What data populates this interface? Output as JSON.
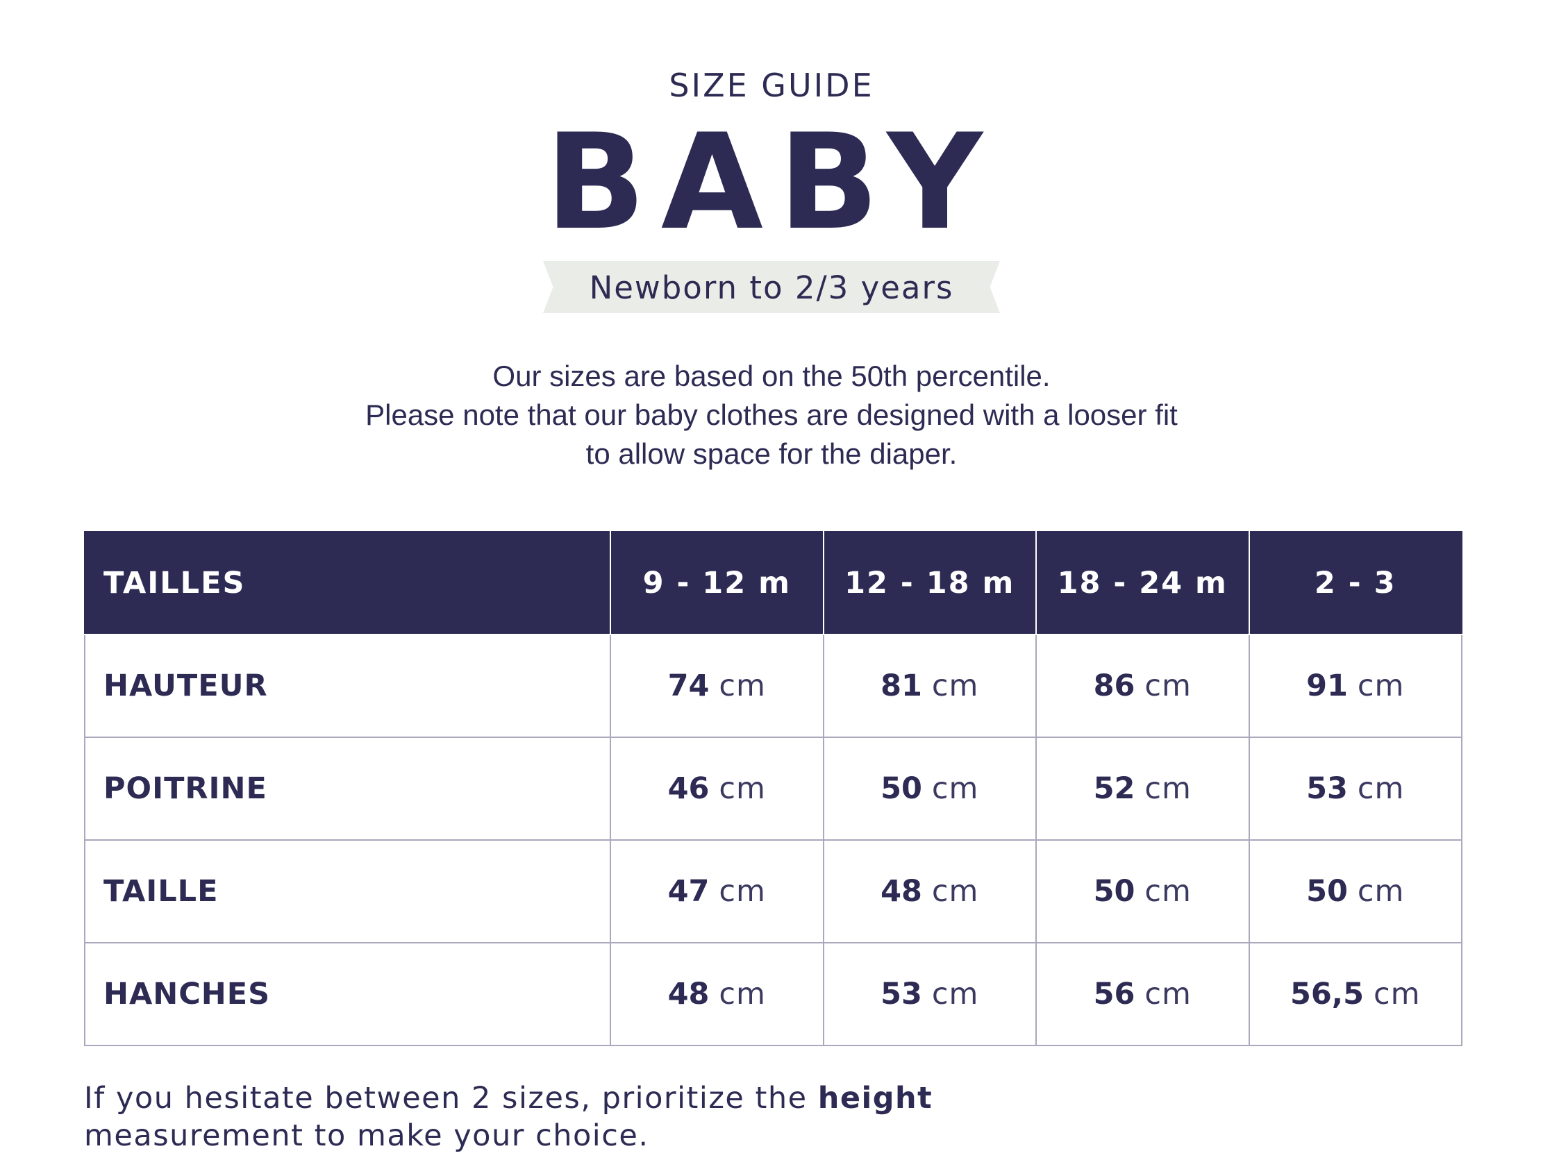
{
  "header": {
    "eyebrow": "SIZE GUIDE",
    "title": "BABY",
    "age_range": "Newborn to 2/3 years"
  },
  "intro": {
    "lines": [
      "Our sizes are based on the 50th percentile.",
      "Please note that our baby clothes are designed with a looser fit",
      "to allow space for the diaper."
    ]
  },
  "colors": {
    "navy": "#2d2b53",
    "ribbon": "#eaede7",
    "grid": "#a9a8bd"
  },
  "table": {
    "corner_label": "TAILLES",
    "columns": [
      "9 - 12 m",
      "12 - 18 m",
      "18 - 24 m",
      "2 - 3"
    ],
    "unit": "cm",
    "rows": [
      {
        "label": "HAUTEUR",
        "values": [
          "74",
          "81",
          "86",
          "91"
        ]
      },
      {
        "label": "POITRINE",
        "values": [
          "46",
          "50",
          "52",
          "53"
        ]
      },
      {
        "label": "TAILLE",
        "values": [
          "47",
          "48",
          "50",
          "50"
        ]
      },
      {
        "label": "HANCHES",
        "values": [
          "48",
          "53",
          "56",
          "56,5"
        ]
      }
    ]
  },
  "footnote": {
    "before": "If you hesitate between 2 sizes, prioritize the ",
    "emphasis": "height",
    "after": "measurement to make your choice."
  }
}
